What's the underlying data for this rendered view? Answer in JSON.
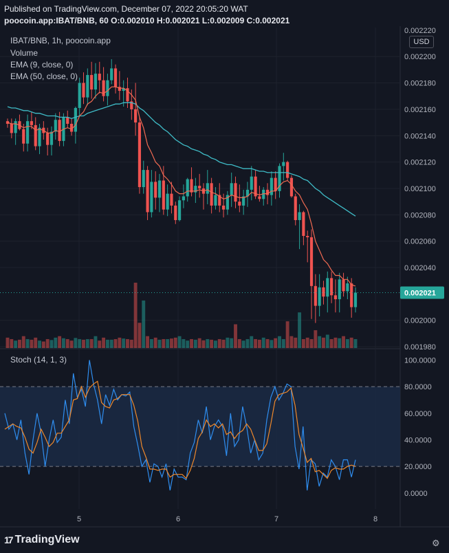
{
  "header": {
    "published": "Published on TradingView.com, December 07, 2022 20:05:20 WAT",
    "symbol_line": "poocoin.app:IBAT/BNB, 60 O:0.002010 H:0.002021 L:0.002009 C:0.002021"
  },
  "legend": {
    "title": "IBAT/BNB, 1h, poocoin.app",
    "volume": "Volume",
    "ema9": "EMA (9, close, 0)",
    "ema50": "EMA (50, close, 0)",
    "stoch": "Stoch (14, 1, 3)"
  },
  "currency_label": "USD",
  "last_price_label": "0.002021",
  "brand": {
    "logo_text": "TradingView",
    "logo_mark": "17"
  },
  "gear_icon": "⚙",
  "colors": {
    "up": "#26a69a",
    "down": "#ef5350",
    "ema9": "#f06a52",
    "ema50": "#3fbcc7",
    "stoch_k": "#2f8ef0",
    "stoch_d": "#f0892b",
    "stoch_band": "#1b2a44",
    "background": "#131722",
    "grid": "#1e222d"
  },
  "chart_data": [
    {
      "type": "candlestick",
      "title": "IBAT/BNB, 1h, poocoin.app",
      "x_ticks": [
        "5",
        "6",
        "7",
        "8"
      ],
      "y_ticks": [
        "0.002200",
        "0.002180",
        "0.002160",
        "0.002140",
        "0.002120",
        "0.002100",
        "0.002080",
        "0.002060",
        "0.002040",
        "0.002000",
        "0.001980"
      ],
      "y_top_partial_tick": "0.002220",
      "ylim": [
        0.001979,
        0.002222
      ],
      "last_close": 0.002021,
      "candles_ohlc": [
        [
          0.002151,
          0.002153,
          0.002146,
          0.002149
        ],
        [
          0.002149,
          0.002153,
          0.002138,
          0.002142
        ],
        [
          0.002142,
          0.002153,
          0.002133,
          0.002151
        ],
        [
          0.002151,
          0.002156,
          0.002144,
          0.002145
        ],
        [
          0.002145,
          0.002149,
          0.002128,
          0.002134
        ],
        [
          0.002134,
          0.002156,
          0.002128,
          0.002151
        ],
        [
          0.002151,
          0.002158,
          0.002145,
          0.002148
        ],
        [
          0.002148,
          0.002154,
          0.002129,
          0.002132
        ],
        [
          0.002132,
          0.002149,
          0.002126,
          0.002146
        ],
        [
          0.002146,
          0.002151,
          0.002137,
          0.002142
        ],
        [
          0.002142,
          0.002146,
          0.002125,
          0.002133
        ],
        [
          0.002133,
          0.002147,
          0.002125,
          0.002143
        ],
        [
          0.002143,
          0.002157,
          0.002137,
          0.002152
        ],
        [
          0.002152,
          0.002158,
          0.002132,
          0.002136
        ],
        [
          0.002136,
          0.002157,
          0.002132,
          0.002154
        ],
        [
          0.002154,
          0.002159,
          0.002146,
          0.002149
        ],
        [
          0.002149,
          0.002153,
          0.00214,
          0.002143
        ],
        [
          0.002143,
          0.002162,
          0.002134,
          0.002161
        ],
        [
          0.002161,
          0.002184,
          0.002155,
          0.00218
        ],
        [
          0.00218,
          0.002188,
          0.002164,
          0.002169
        ],
        [
          0.002169,
          0.002191,
          0.002163,
          0.002186
        ],
        [
          0.002186,
          0.002196,
          0.002168,
          0.002175
        ],
        [
          0.002175,
          0.002195,
          0.002168,
          0.002187
        ],
        [
          0.002187,
          0.002196,
          0.002172,
          0.002182
        ],
        [
          0.002182,
          0.002192,
          0.002166,
          0.00217
        ],
        [
          0.00217,
          0.002187,
          0.002163,
          0.002182
        ],
        [
          0.002182,
          0.002198,
          0.002179,
          0.002191
        ],
        [
          0.002191,
          0.002194,
          0.002172,
          0.002177
        ],
        [
          0.002177,
          0.002189,
          0.002167,
          0.002174
        ],
        [
          0.002174,
          0.002182,
          0.002162,
          0.002176
        ],
        [
          0.002176,
          0.002184,
          0.002161,
          0.002166
        ],
        [
          0.002166,
          0.002175,
          0.002152,
          0.00216
        ],
        [
          0.00216,
          0.00218,
          0.00214,
          0.00215
        ],
        [
          0.00215,
          0.002154,
          0.002096,
          0.002101
        ],
        [
          0.002101,
          0.002121,
          0.002096,
          0.002114
        ],
        [
          0.002114,
          0.002117,
          0.002076,
          0.002082
        ],
        [
          0.002082,
          0.002114,
          0.002078,
          0.002105
        ],
        [
          0.002105,
          0.002113,
          0.002084,
          0.002093
        ],
        [
          0.002093,
          0.002111,
          0.002082,
          0.002106
        ],
        [
          0.002106,
          0.002117,
          0.00208,
          0.002084
        ],
        [
          0.002084,
          0.002103,
          0.002079,
          0.002096
        ],
        [
          0.002096,
          0.002105,
          0.002081,
          0.002087
        ],
        [
          0.002087,
          0.00209,
          0.002073,
          0.002076
        ],
        [
          0.002076,
          0.002094,
          0.002075,
          0.002091
        ],
        [
          0.002091,
          0.002103,
          0.002085,
          0.002094
        ],
        [
          0.002094,
          0.002108,
          0.00209,
          0.002107
        ],
        [
          0.002107,
          0.002116,
          0.002094,
          0.002097
        ],
        [
          0.002097,
          0.002108,
          0.002089,
          0.002102
        ],
        [
          0.002102,
          0.002111,
          0.002093,
          0.0021
        ],
        [
          0.0021,
          0.002104,
          0.002084,
          0.002096
        ],
        [
          0.002096,
          0.002114,
          0.002088,
          0.002104
        ],
        [
          0.002104,
          0.002108,
          0.002081,
          0.002087
        ],
        [
          0.002087,
          0.002101,
          0.002084,
          0.002095
        ],
        [
          0.002095,
          0.002104,
          0.002082,
          0.002087
        ],
        [
          0.002087,
          0.002096,
          0.002078,
          0.002084
        ],
        [
          0.002084,
          0.002098,
          0.00208,
          0.002095
        ],
        [
          0.002095,
          0.002112,
          0.002086,
          0.002104
        ],
        [
          0.002104,
          0.002109,
          0.002085,
          0.00209
        ],
        [
          0.00209,
          0.002103,
          0.002082,
          0.002087
        ],
        [
          0.002087,
          0.002099,
          0.00208,
          0.002094
        ],
        [
          0.002094,
          0.002105,
          0.002086,
          0.002099
        ],
        [
          0.002099,
          0.002117,
          0.002091,
          0.002109
        ],
        [
          0.002109,
          0.002114,
          0.002092,
          0.002094
        ],
        [
          0.002094,
          0.002102,
          0.00209,
          0.002092
        ],
        [
          0.002092,
          0.002101,
          0.002087,
          0.002099
        ],
        [
          0.002099,
          0.002104,
          0.002088,
          0.002095
        ],
        [
          0.002095,
          0.002113,
          0.002087,
          0.002108
        ],
        [
          0.002108,
          0.002113,
          0.002092,
          0.002098
        ],
        [
          0.002098,
          0.002119,
          0.002093,
          0.002117
        ],
        [
          0.002117,
          0.002127,
          0.002106,
          0.00212
        ],
        [
          0.00212,
          0.002121,
          0.002106,
          0.002108
        ],
        [
          0.002108,
          0.00211,
          0.002093,
          0.002094
        ],
        [
          0.002094,
          0.002096,
          0.002072,
          0.002076
        ],
        [
          0.002076,
          0.002088,
          0.002054,
          0.002082
        ],
        [
          0.002082,
          0.002083,
          0.002057,
          0.002064
        ],
        [
          0.002064,
          0.002068,
          0.002044,
          0.002063
        ],
        [
          0.002063,
          0.002069,
          0.002001,
          0.002026
        ],
        [
          0.002026,
          0.002035,
          0.001998,
          0.002011
        ],
        [
          0.002011,
          0.002035,
          0.002003,
          0.002025
        ],
        [
          0.002025,
          0.00203,
          0.002012,
          0.002018
        ],
        [
          0.002018,
          0.002037,
          0.002006,
          0.002032
        ],
        [
          0.002032,
          0.002037,
          0.002013,
          0.002019
        ],
        [
          0.002019,
          0.002031,
          0.002006,
          0.002016
        ],
        [
          0.002016,
          0.002036,
          0.002006,
          0.002031
        ],
        [
          0.002031,
          0.002036,
          0.002018,
          0.002022
        ],
        [
          0.002022,
          0.002033,
          0.002016,
          0.002028
        ],
        [
          0.002028,
          0.002032,
          0.002002,
          0.00201
        ],
        [
          0.00201,
          0.002025,
          0.002006,
          0.002021
        ]
      ],
      "volume": [
        0.35,
        0.3,
        0.25,
        0.28,
        0.4,
        0.3,
        0.28,
        0.35,
        0.25,
        0.22,
        0.3,
        0.27,
        0.35,
        0.4,
        0.33,
        0.3,
        0.25,
        0.34,
        0.3,
        0.28,
        0.3,
        0.3,
        0.4,
        0.25,
        0.35,
        0.28,
        0.28,
        0.3,
        0.35,
        0.32,
        0.3,
        0.28,
        2.2,
        0.85,
        1.6,
        0.4,
        0.3,
        0.35,
        0.28,
        0.3,
        0.3,
        0.32,
        0.35,
        0.4,
        0.3,
        0.25,
        0.3,
        0.28,
        0.33,
        0.26,
        0.3,
        0.28,
        0.25,
        0.3,
        0.28,
        0.35,
        0.33,
        0.8,
        0.3,
        0.25,
        0.3,
        0.4,
        0.3,
        0.28,
        0.35,
        0.3,
        0.27,
        0.33,
        0.4,
        0.3,
        0.9,
        0.4,
        0.35,
        1.2,
        0.3,
        0.35,
        0.3,
        0.6,
        0.4,
        0.35,
        0.45,
        0.3,
        0.35,
        0.33,
        0.4,
        0.3,
        0.35,
        0.3
      ],
      "ema9": [
        0.00215,
        0.002149,
        0.002149,
        0.002148,
        0.002146,
        0.002147,
        0.002147,
        0.002144,
        0.002145,
        0.002144,
        0.002142,
        0.002142,
        0.002144,
        0.002143,
        0.002145,
        0.002146,
        0.002145,
        0.002148,
        0.002155,
        0.002158,
        0.002164,
        0.002166,
        0.00217,
        0.002173,
        0.002172,
        0.002174,
        0.002177,
        0.002177,
        0.002176,
        0.002176,
        0.002174,
        0.002171,
        0.002167,
        0.002154,
        0.002146,
        0.002133,
        0.002127,
        0.00212,
        0.002117,
        0.00211,
        0.002107,
        0.002103,
        0.002098,
        0.002096,
        0.002096,
        0.002098,
        0.002098,
        0.002098,
        0.002099,
        0.002098,
        0.002099,
        0.002097,
        0.002096,
        0.002094,
        0.002092,
        0.002093,
        0.002095,
        0.002094,
        0.002093,
        0.002093,
        0.002094,
        0.002097,
        0.002096,
        0.002095,
        0.002096,
        0.002096,
        0.002098,
        0.002098,
        0.002102,
        0.002105,
        0.002106,
        0.002103,
        0.002098,
        0.002095,
        0.002089,
        0.002084,
        0.002073,
        0.00206,
        0.002053,
        0.002046,
        0.002043,
        0.002038,
        0.002034,
        0.002034,
        0.002031,
        0.002031,
        0.002027,
        0.002026
      ],
      "ema50": [
        0.002162,
        0.002161,
        0.002161,
        0.00216,
        0.002159,
        0.002159,
        0.002158,
        0.002157,
        0.002157,
        0.002156,
        0.002155,
        0.002155,
        0.002155,
        0.002154,
        0.002154,
        0.002154,
        0.002153,
        0.002154,
        0.002155,
        0.002155,
        0.002157,
        0.002158,
        0.002159,
        0.00216,
        0.002161,
        0.002162,
        0.002163,
        0.002164,
        0.002164,
        0.002165,
        0.002165,
        0.002165,
        0.002164,
        0.002161,
        0.002159,
        0.002156,
        0.002153,
        0.00215,
        0.002148,
        0.002145,
        0.002143,
        0.00214,
        0.002137,
        0.002135,
        0.002133,
        0.002132,
        0.00213,
        0.002129,
        0.002128,
        0.002126,
        0.002125,
        0.002123,
        0.002122,
        0.00212,
        0.002119,
        0.002118,
        0.002118,
        0.002117,
        0.002116,
        0.002115,
        0.002115,
        0.002115,
        0.002114,
        0.002113,
        0.002113,
        0.002112,
        0.002112,
        0.002112,
        0.002112,
        0.002112,
        0.002112,
        0.002111,
        0.00211,
        0.002109,
        0.002107,
        0.002106,
        0.002103,
        0.0021,
        0.002098,
        0.002095,
        0.002093,
        0.002091,
        0.002089,
        0.002087,
        0.002085,
        0.002083,
        0.002081,
        0.002079
      ]
    },
    {
      "type": "line",
      "title": "Stoch (14, 1, 3)",
      "y_ticks": [
        "100.0000",
        "80.0000",
        "60.0000",
        "40.0000",
        "20.0000",
        "0.0000"
      ],
      "ylim": [
        -12,
        108
      ],
      "band": [
        20,
        80
      ],
      "series": [
        {
          "name": "%K",
          "values": [
            60,
            48,
            52,
            40,
            55,
            30,
            14,
            40,
            60,
            45,
            20,
            40,
            55,
            38,
            42,
            70,
            52,
            90,
            72,
            78,
            65,
            100,
            82,
            70,
            52,
            74,
            66,
            78,
            70,
            74,
            73,
            76,
            50,
            36,
            20,
            25,
            8,
            22,
            20,
            12,
            22,
            2,
            18,
            12,
            12,
            10,
            30,
            38,
            55,
            45,
            65,
            40,
            50,
            55,
            50,
            28,
            60,
            35,
            40,
            65,
            50,
            30,
            40,
            25,
            30,
            55,
            72,
            80,
            70,
            75,
            82,
            80,
            35,
            18,
            50,
            2,
            25,
            22,
            5,
            15,
            12,
            25,
            20,
            10,
            25,
            25,
            12,
            25
          ]
        },
        {
          "name": "%D",
          "values": [
            48,
            50,
            52,
            50,
            49,
            42,
            33,
            30,
            38,
            48,
            42,
            35,
            38,
            45,
            45,
            50,
            55,
            70,
            71,
            80,
            72,
            79,
            82,
            84,
            68,
            65,
            64,
            70,
            71,
            74,
            74,
            74,
            66,
            54,
            35,
            27,
            18,
            18,
            17,
            18,
            18,
            12,
            14,
            14,
            14,
            11,
            17,
            26,
            41,
            46,
            55,
            50,
            52,
            49,
            52,
            44,
            46,
            41,
            45,
            47,
            52,
            48,
            40,
            32,
            32,
            37,
            52,
            69,
            74,
            75,
            76,
            79,
            66,
            44,
            34,
            23,
            26,
            16,
            17,
            14,
            11,
            17,
            19,
            18,
            18,
            20,
            21,
            20
          ]
        }
      ]
    }
  ]
}
